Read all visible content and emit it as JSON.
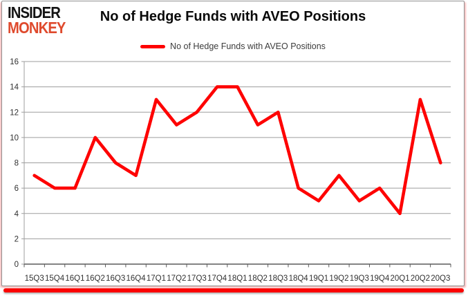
{
  "logo": {
    "line1": "INSIDER",
    "line2": "MONKEY"
  },
  "header": {
    "title": "No of Hedge Funds with AVEO Positions"
  },
  "legend": {
    "label": "No of Hedge Funds with AVEO Positions"
  },
  "colors": {
    "line": "#fe0000",
    "grid": "#9d9d9d",
    "axis": "#5a5a5a",
    "text": "#303030",
    "title": "#0a0a0a",
    "logo_black": "#141414",
    "logo_red": "#df4a2d",
    "border_red": "#fb0301",
    "border_pink": "#f6bdbd",
    "card_border": "#919191"
  },
  "chart_data": {
    "type": "line",
    "title": "No of Hedge Funds with AVEO Positions",
    "series_name": "No of Hedge Funds with AVEO Positions",
    "categories": [
      "15Q3",
      "15Q4",
      "16Q1",
      "16Q2",
      "16Q3",
      "16Q4",
      "17Q1",
      "17Q2",
      "17Q3",
      "17Q4",
      "18Q1",
      "18Q2",
      "18Q3",
      "18Q4",
      "19Q1",
      "19Q2",
      "19Q3",
      "19Q4",
      "20Q1",
      "20Q2",
      "20Q3"
    ],
    "values": [
      7,
      6,
      6,
      10,
      8,
      7,
      13,
      11,
      12,
      14,
      14,
      11,
      12,
      6,
      5,
      7,
      5,
      6,
      4,
      13,
      8
    ],
    "xlabel": "",
    "ylabel": "",
    "ylim": [
      0,
      16
    ],
    "ytick_step": 2,
    "grid": true,
    "legend_position": "top"
  }
}
